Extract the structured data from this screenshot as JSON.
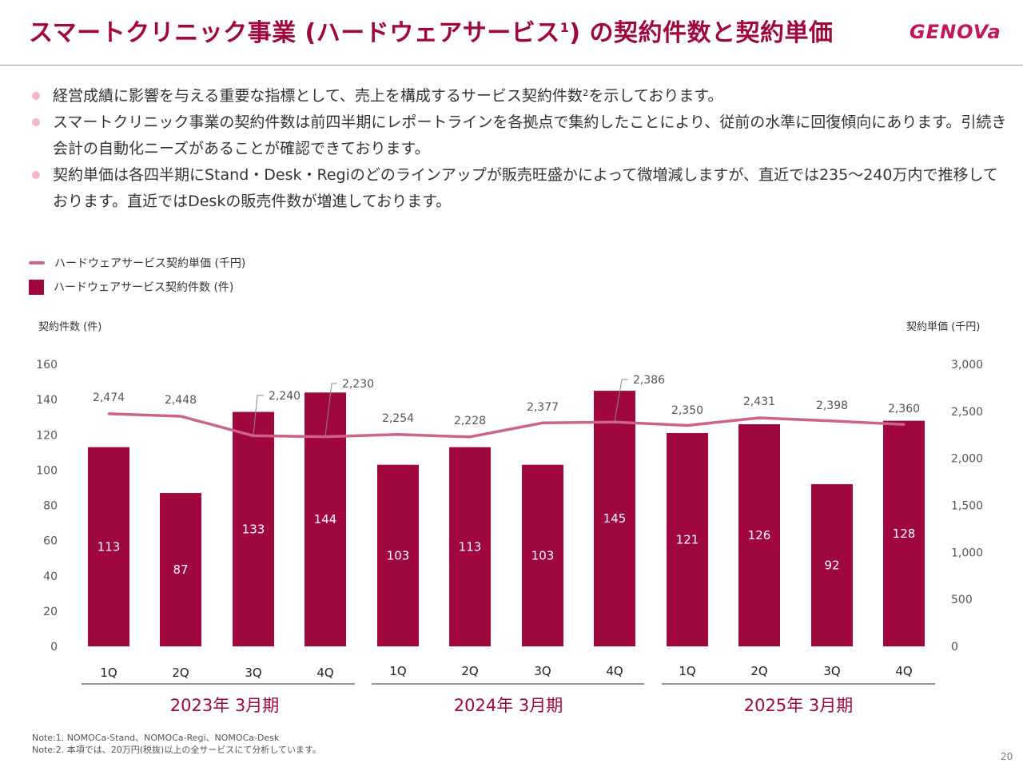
{
  "header": {
    "title_main": "スマートクリニック事業 (ハードウェアサービス",
    "title_sup": "1",
    "title_end": ") の契約件数と契約単価",
    "logo": "GENOVa"
  },
  "bullets": [
    "経営成績に影響を与える重要な指標として、売上を構成するサービス契約件数²を示しております。",
    "スマートクリニック事業の契約件数は前四半期にレポートラインを各拠点で集約したことにより、従前の水準に回復傾向にあります。引続き会計の自動化ニーズがあることが確認できております。",
    "契約単価は各四半期にStand・Desk・Regiのどのラインアップが販売旺盛かによって微増減しますが、直近では235〜240万内で推移しております。直近ではDeskの販売件数が増進しております。"
  ],
  "legend": {
    "line_label": "ハードウェアサービス契約単価 (千円)",
    "bar_label": "ハードウェアサービス契約件数 (件)"
  },
  "axis_titles": {
    "left": "契約件数 (件)",
    "right": "契約単価 (千円)"
  },
  "chart_data": {
    "type": "bar",
    "categories": [
      "1Q",
      "2Q",
      "3Q",
      "4Q",
      "1Q",
      "2Q",
      "3Q",
      "4Q",
      "1Q",
      "2Q",
      "3Q",
      "4Q"
    ],
    "groups": [
      "2023年 3月期",
      "2024年 3月期",
      "2025年 3月期"
    ],
    "series": [
      {
        "name": "ハードウェアサービス契約件数 (件)",
        "type": "bar",
        "axis": "left",
        "values": [
          113,
          87,
          133,
          144,
          103,
          113,
          103,
          145,
          121,
          126,
          92,
          128
        ]
      },
      {
        "name": "ハードウェアサービス契約単価 (千円)",
        "type": "line",
        "axis": "right",
        "values": [
          2474,
          2448,
          2240,
          2230,
          2254,
          2228,
          2377,
          2386,
          2350,
          2431,
          2398,
          2360
        ]
      }
    ],
    "bar_labels": [
      "113",
      "87",
      "133",
      "144",
      "103",
      "113",
      "103",
      "145",
      "121",
      "126",
      "92",
      "128"
    ],
    "line_labels": [
      "2,474",
      "2,448",
      "2,240",
      "2,230",
      "2,254",
      "2,228",
      "2,377",
      "2,386",
      "2,350",
      "2,431",
      "2,398",
      "2,360"
    ],
    "left_ticks": [
      "0",
      "20",
      "40",
      "60",
      "80",
      "100",
      "120",
      "140",
      "160"
    ],
    "right_ticks": [
      "0",
      "500",
      "1,000",
      "1,500",
      "2,000",
      "2,500",
      "3,000"
    ],
    "ylim_left": [
      0,
      160
    ],
    "ylim_right": [
      0,
      3000
    ],
    "bar_color": "#a0073f",
    "line_color": "#cd6388"
  },
  "notes": [
    "Note:1. NOMOCa-Stand、NOMOCa-Regi、NOMOCa-Desk",
    "Note:2. 本項では、20万円(税抜)以上の全サービスにて分析しています。"
  ],
  "page_number": "20"
}
